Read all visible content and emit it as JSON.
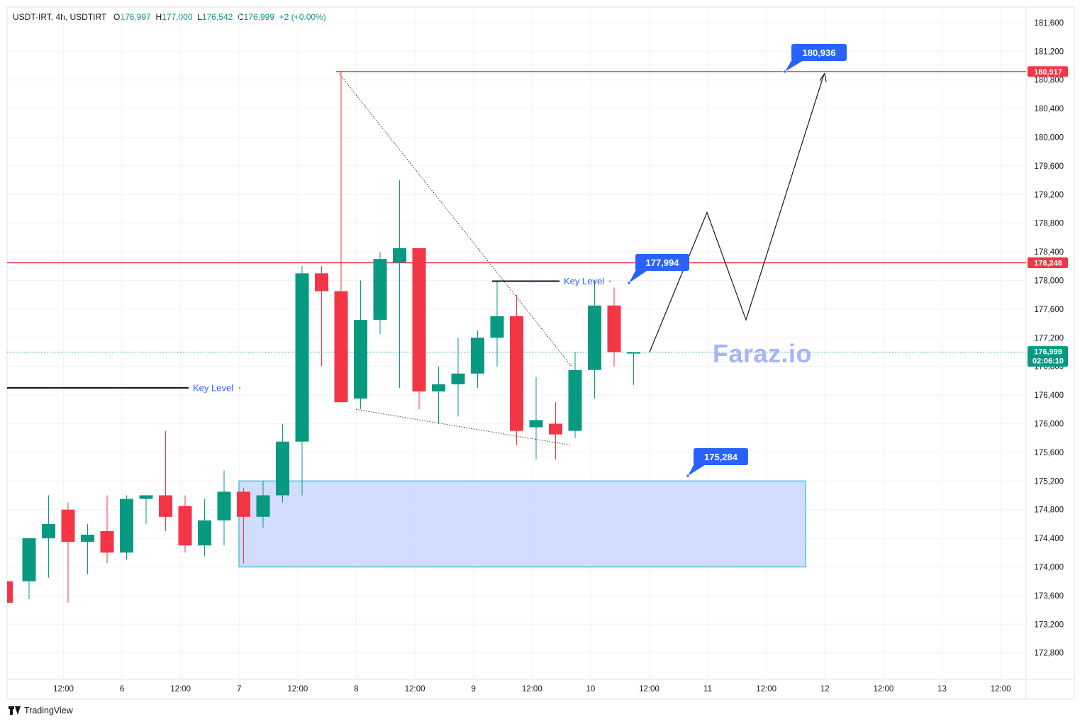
{
  "header": {
    "symbol": "USDT-IRT, 4h, USDTIRT",
    "o_label": "O",
    "o_value": "176,997",
    "h_label": "H",
    "h_value": "177,000",
    "l_label": "L",
    "l_value": "176,542",
    "c_label": "C",
    "c_value": "176,999",
    "change": "+2 (+0.00%)"
  },
  "brand": {
    "name": "TradingView",
    "logo_icon": "tradingview-logo-icon"
  },
  "watermark": "Faraz.io",
  "colors": {
    "up": "#089981",
    "down": "#f23645",
    "resistance": "#f23645",
    "callout": "#2962ff",
    "zone_fill": "#c9d6ff",
    "zone_border": "#4dc7d3",
    "grid": "#f0f3fa"
  },
  "chart_data": {
    "type": "candlestick",
    "y_axis": {
      "range": [
        172400,
        182000
      ],
      "ticks": [
        "172,800",
        "173,200",
        "173,600",
        "174,000",
        "174,400",
        "174,800",
        "175,200",
        "175,600",
        "176,000",
        "176,400",
        "176,800",
        "177,200",
        "177,600",
        "178,000",
        "178,400",
        "178,800",
        "179,200",
        "179,600",
        "180,000",
        "180,400",
        "180,800",
        "181,200",
        "181,600"
      ]
    },
    "x_axis": {
      "ticks": [
        "12:00",
        "6",
        "12:00",
        "7",
        "12:00",
        "8",
        "12:00",
        "9",
        "12:00",
        "10",
        "12:00",
        "11",
        "12:00",
        "12",
        "12:00",
        "13",
        "12:00"
      ]
    },
    "candles": [
      {
        "o": 173800,
        "h": 173800,
        "l": 173500,
        "c": 173500
      },
      {
        "o": 173800,
        "h": 174400,
        "l": 173550,
        "c": 174400
      },
      {
        "o": 174400,
        "h": 175000,
        "l": 173850,
        "c": 174600
      },
      {
        "o": 174800,
        "h": 174900,
        "l": 173500,
        "c": 174350
      },
      {
        "o": 174350,
        "h": 174600,
        "l": 173900,
        "c": 174450
      },
      {
        "o": 174500,
        "h": 175000,
        "l": 174050,
        "c": 174200
      },
      {
        "o": 174200,
        "h": 175000,
        "l": 174100,
        "c": 174950
      },
      {
        "o": 174950,
        "h": 175000,
        "l": 174600,
        "c": 175000
      },
      {
        "o": 175000,
        "h": 175900,
        "l": 174500,
        "c": 174700
      },
      {
        "o": 174850,
        "h": 175000,
        "l": 174200,
        "c": 174300
      },
      {
        "o": 174300,
        "h": 174950,
        "l": 174150,
        "c": 174650
      },
      {
        "o": 174650,
        "h": 175350,
        "l": 174300,
        "c": 175050
      },
      {
        "o": 175050,
        "h": 175100,
        "l": 174050,
        "c": 174700
      },
      {
        "o": 174700,
        "h": 175200,
        "l": 174550,
        "c": 175000
      },
      {
        "o": 175000,
        "h": 176000,
        "l": 174900,
        "c": 175750
      },
      {
        "o": 175750,
        "h": 178200,
        "l": 175000,
        "c": 178100
      },
      {
        "o": 178100,
        "h": 178200,
        "l": 176800,
        "c": 177850
      },
      {
        "o": 177850,
        "h": 180917,
        "l": 176300,
        "c": 176300
      },
      {
        "o": 176350,
        "h": 178000,
        "l": 176200,
        "c": 177450
      },
      {
        "o": 177450,
        "h": 178400,
        "l": 177250,
        "c": 178300
      },
      {
        "o": 178250,
        "h": 179400,
        "l": 176500,
        "c": 178450
      },
      {
        "o": 178450,
        "h": 178450,
        "l": 176200,
        "c": 176450
      },
      {
        "o": 176450,
        "h": 176800,
        "l": 176000,
        "c": 176550
      },
      {
        "o": 176550,
        "h": 177200,
        "l": 176100,
        "c": 176700
      },
      {
        "o": 176700,
        "h": 177300,
        "l": 176500,
        "c": 177200
      },
      {
        "o": 177200,
        "h": 178000,
        "l": 176800,
        "c": 177500
      },
      {
        "o": 177500,
        "h": 177800,
        "l": 175700,
        "c": 175900
      },
      {
        "o": 175950,
        "h": 176650,
        "l": 175500,
        "c": 176050
      },
      {
        "o": 176000,
        "h": 176300,
        "l": 175500,
        "c": 175850
      },
      {
        "o": 175900,
        "h": 177000,
        "l": 175800,
        "c": 176750
      },
      {
        "o": 176750,
        "h": 178000,
        "l": 176350,
        "c": 177650
      },
      {
        "o": 177650,
        "h": 177900,
        "l": 176800,
        "c": 177000
      },
      {
        "o": 176997,
        "h": 177000,
        "l": 176542,
        "c": 176999
      }
    ],
    "horizontal_lines": [
      {
        "price": 180917,
        "label": "180,917"
      },
      {
        "price": 178248,
        "label": "178,248"
      }
    ],
    "current_price": {
      "price": 176999,
      "label": "176,999",
      "countdown": "02:06:10"
    },
    "key_levels": [
      {
        "price": 176500,
        "text": "Key Level"
      },
      {
        "price": 177990,
        "text": "Key Level"
      }
    ],
    "callouts": [
      "180,936",
      "177,994",
      "175,284"
    ],
    "zone": {
      "from": 174000,
      "to": 175200
    },
    "projection_path": [
      176999,
      178950,
      177450,
      180880
    ]
  }
}
